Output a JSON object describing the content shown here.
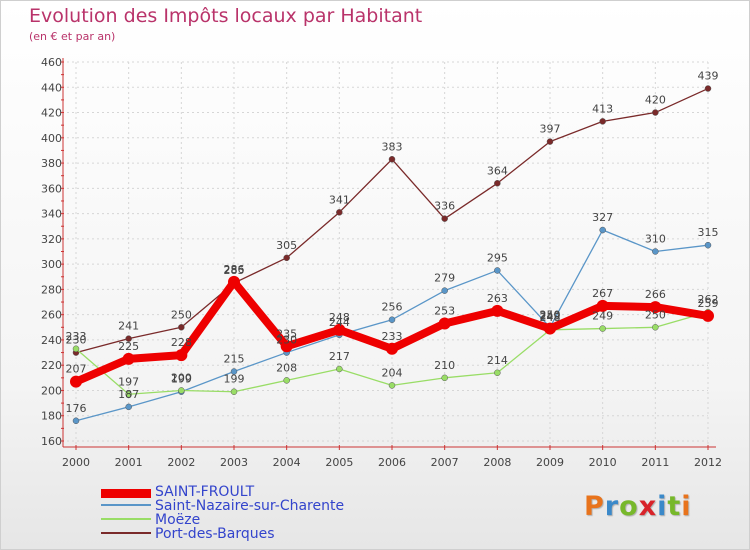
{
  "chart_data": {
    "type": "line",
    "title": "Evolution des Impôts locaux par Habitant",
    "subtitle": "(en € et par an)",
    "x": [
      "2000",
      "2001",
      "2002",
      "2003",
      "2004",
      "2005",
      "2006",
      "2007",
      "2008",
      "2009",
      "2010",
      "2011",
      "2012"
    ],
    "ylim": [
      160,
      460
    ],
    "yticks": [
      160,
      180,
      200,
      220,
      240,
      260,
      280,
      300,
      320,
      340,
      360,
      380,
      400,
      420,
      440,
      460
    ],
    "grid": true,
    "legend_position": "bottom-left",
    "series": [
      {
        "name": "Port-des-Barques",
        "color": "#7a2a2a",
        "values": [
          230,
          241,
          250,
          285,
          305,
          341,
          383,
          336,
          364,
          397,
          413,
          420,
          439
        ]
      },
      {
        "name": "Saint-Nazaire-sur-Charente",
        "color": "#5a96c8",
        "values": [
          176,
          187,
          199,
          215,
          230,
          244,
          256,
          279,
          295,
          250,
          327,
          310,
          315
        ]
      },
      {
        "name": "Moëze",
        "color": "#99dd66",
        "values": [
          233,
          197,
          200,
          199,
          208,
          217,
          204,
          210,
          214,
          248,
          249,
          250,
          262
        ]
      },
      {
        "name": "SAINT-FROULT",
        "color": "#ee0000",
        "values": [
          207,
          225,
          228,
          286,
          235,
          248,
          233,
          253,
          263,
          249,
          267,
          266,
          259
        ]
      }
    ]
  },
  "legend": {
    "items": [
      {
        "label": "SAINT-FROULT",
        "color": "#ee0000"
      },
      {
        "label": "Saint-Nazaire-sur-Charente",
        "color": "#5a96c8"
      },
      {
        "label": "Moëze",
        "color": "#99dd66"
      },
      {
        "label": "Port-des-Barques",
        "color": "#7a2a2a"
      }
    ]
  },
  "logo": {
    "letters": [
      "P",
      "r",
      "o",
      "x",
      "i",
      "t",
      "i"
    ],
    "colors": [
      "#e8731c",
      "#3b89c9",
      "#77b82a",
      "#d8232a",
      "#3b89c9",
      "#77b82a",
      "#e8731c"
    ]
  }
}
